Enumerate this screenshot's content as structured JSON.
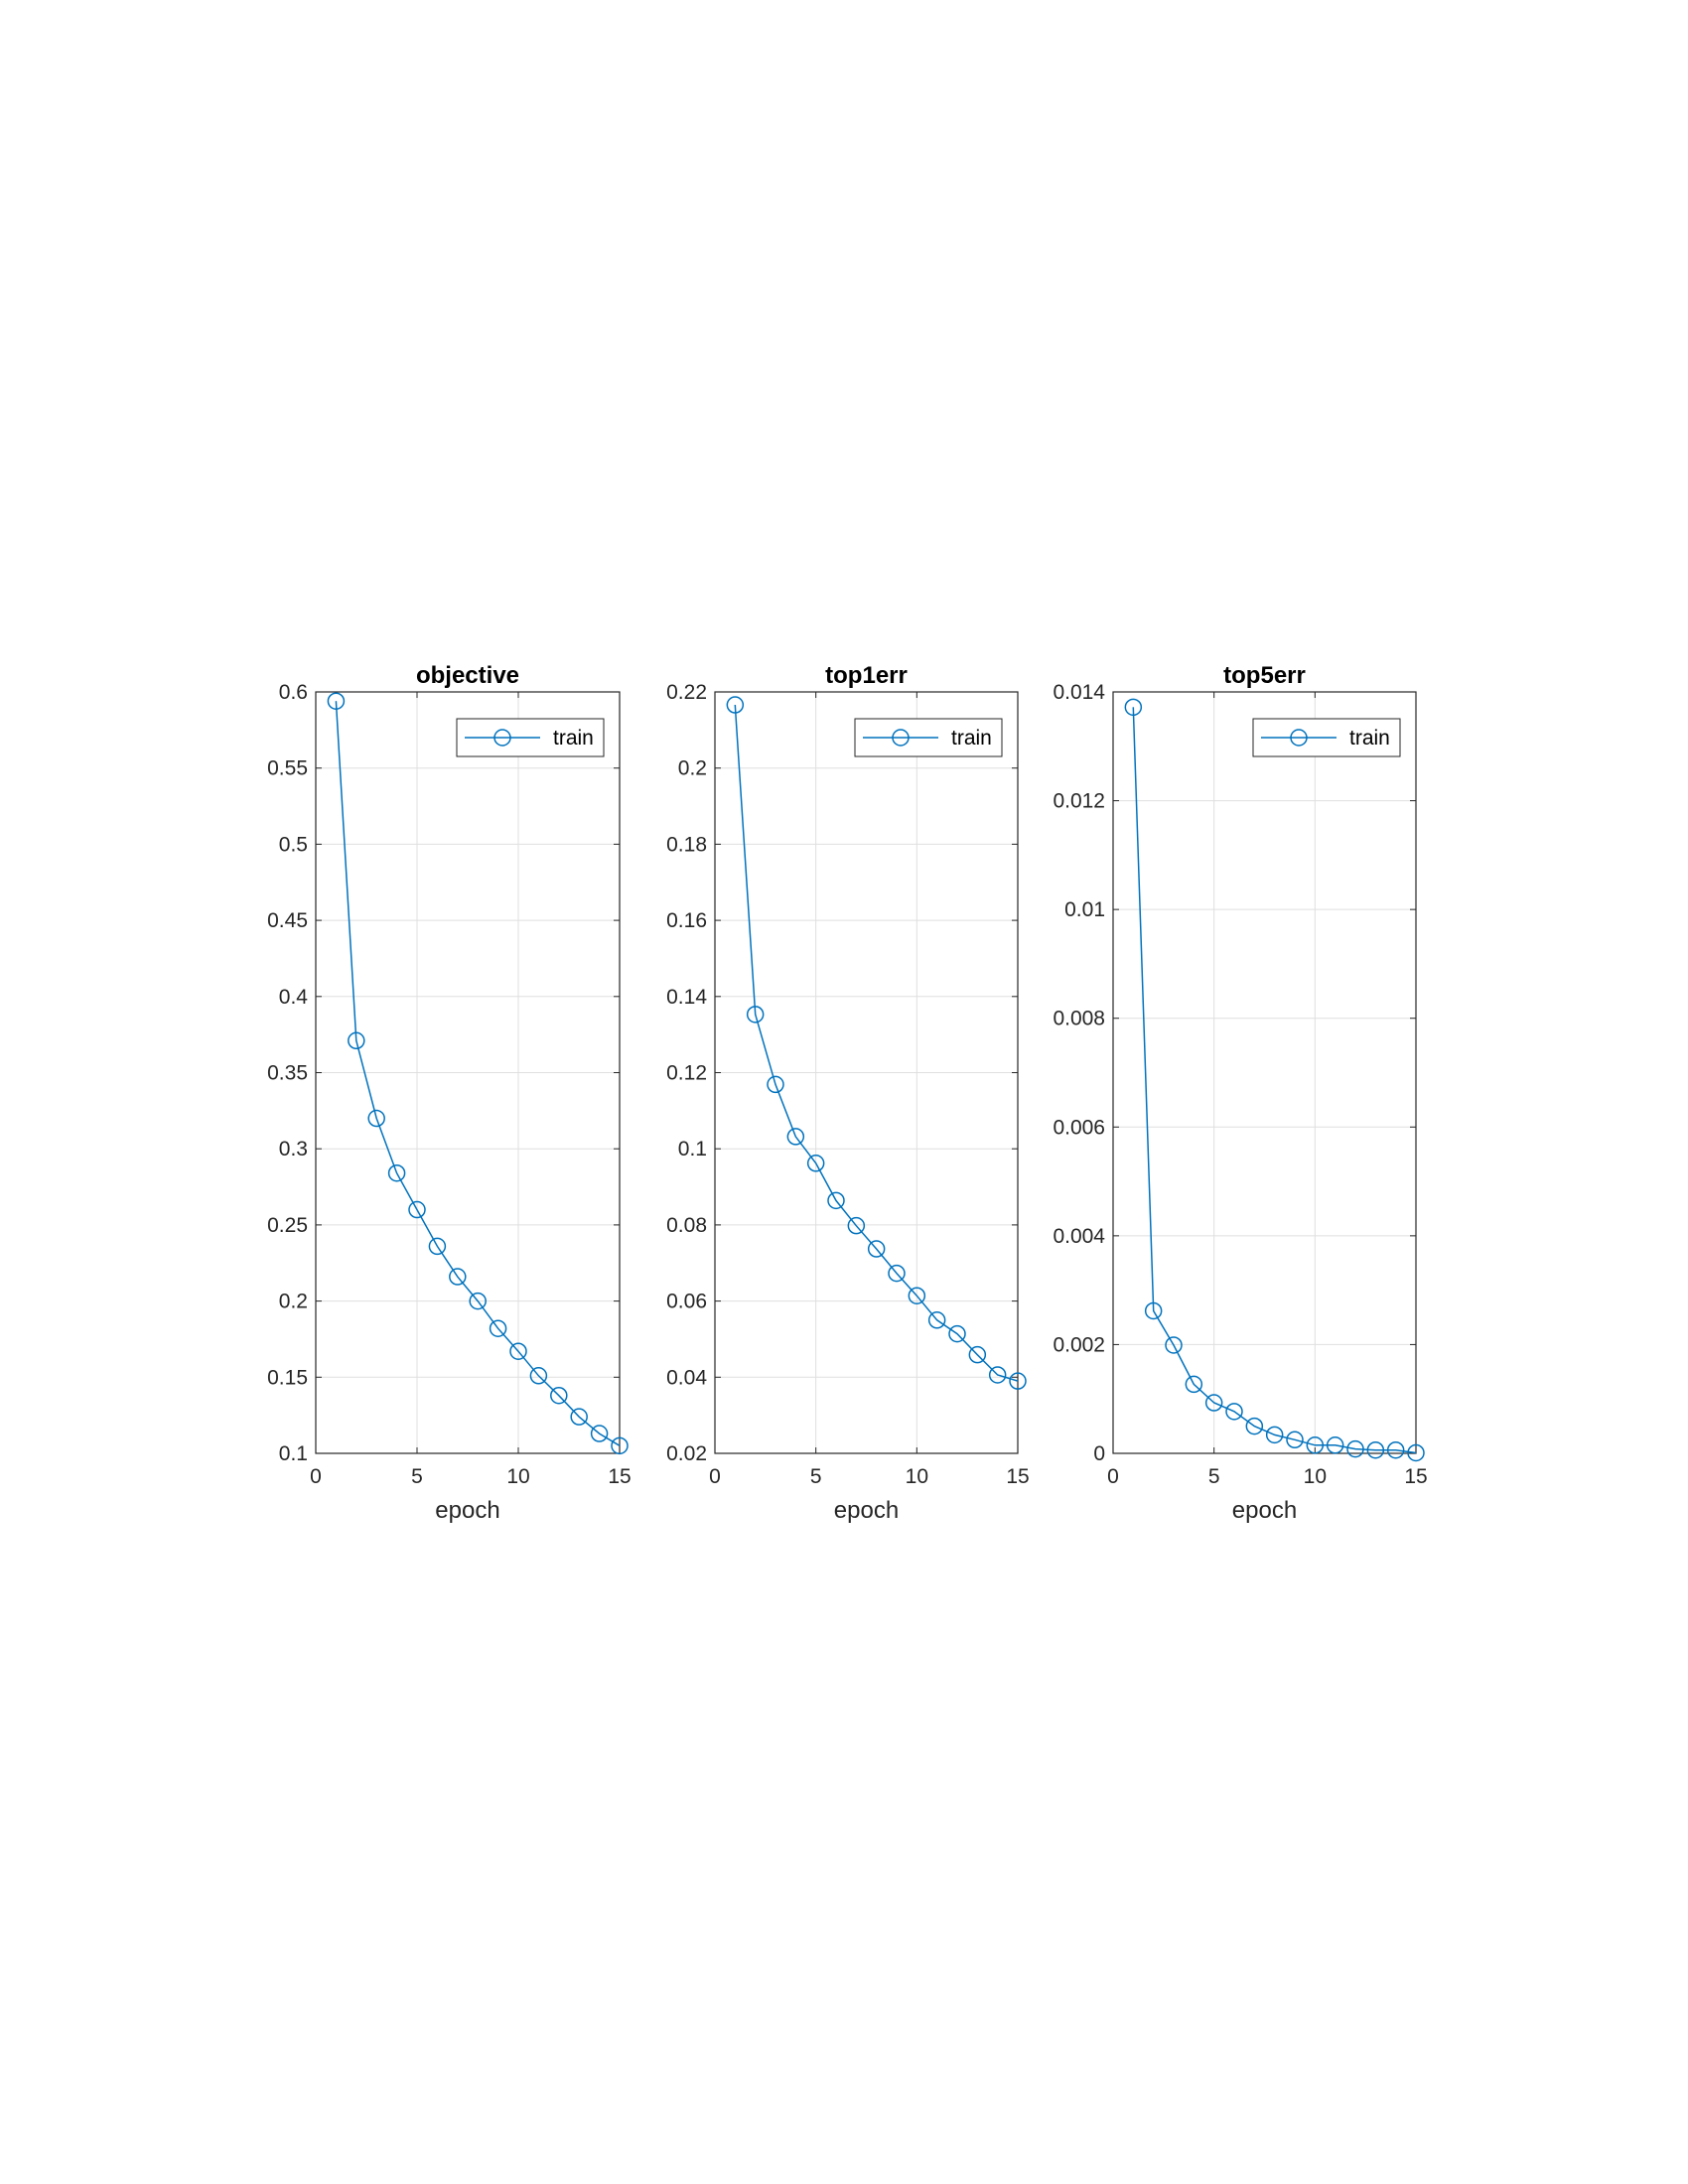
{
  "chart_data": [
    {
      "type": "line",
      "title": "objective",
      "xlabel": "epoch",
      "ylabel": "",
      "xlim": [
        0,
        15
      ],
      "ylim": [
        0.1,
        0.6
      ],
      "xticks": [
        "0",
        "5",
        "10",
        "15"
      ],
      "yticks": [
        "0.1",
        "0.15",
        "0.2",
        "0.25",
        "0.3",
        "0.35",
        "0.4",
        "0.45",
        "0.5",
        "0.55",
        "0.6"
      ],
      "grid": true,
      "legend_position": "top-right",
      "series": [
        {
          "name": "train",
          "color": "#0072BD",
          "marker": "circle",
          "x": [
            1,
            2,
            3,
            4,
            5,
            6,
            7,
            8,
            9,
            10,
            11,
            12,
            13,
            14,
            15
          ],
          "y": [
            0.594,
            0.371,
            0.32,
            0.284,
            0.26,
            0.236,
            0.216,
            0.2,
            0.182,
            0.167,
            0.151,
            0.138,
            0.124,
            0.113,
            0.105
          ]
        }
      ]
    },
    {
      "type": "line",
      "title": "top1err",
      "xlabel": "epoch",
      "ylabel": "",
      "xlim": [
        0,
        15
      ],
      "ylim": [
        0.02,
        0.22
      ],
      "xticks": [
        "0",
        "5",
        "10",
        "15"
      ],
      "yticks": [
        "0.02",
        "0.04",
        "0.06",
        "0.08",
        "0.1",
        "0.12",
        "0.14",
        "0.16",
        "0.18",
        "0.2",
        "0.22"
      ],
      "grid": true,
      "legend_position": "top-right",
      "series": [
        {
          "name": "train",
          "color": "#0072BD",
          "marker": "circle",
          "x": [
            1,
            2,
            3,
            4,
            5,
            6,
            7,
            8,
            9,
            10,
            11,
            12,
            13,
            14,
            15
          ],
          "y": [
            0.2166,
            0.1353,
            0.1169,
            0.1032,
            0.0962,
            0.0864,
            0.0798,
            0.0737,
            0.0673,
            0.0614,
            0.055,
            0.0514,
            0.0459,
            0.0406,
            0.039
          ]
        }
      ]
    },
    {
      "type": "line",
      "title": "top5err",
      "xlabel": "epoch",
      "ylabel": "",
      "xlim": [
        0,
        15
      ],
      "ylim": [
        0,
        0.014
      ],
      "xticks": [
        "0",
        "5",
        "10",
        "15"
      ],
      "yticks": [
        "0",
        "0.002",
        "0.004",
        "0.006",
        "0.008",
        "0.01",
        "0.012",
        "0.014"
      ],
      "grid": true,
      "legend_position": "top-right",
      "series": [
        {
          "name": "train",
          "color": "#0072BD",
          "marker": "circle",
          "x": [
            1,
            2,
            3,
            4,
            5,
            6,
            7,
            8,
            9,
            10,
            11,
            12,
            13,
            14,
            15
          ],
          "y": [
            0.01372,
            0.00262,
            0.00199,
            0.00127,
            0.00093,
            0.00077,
            0.0005,
            0.00034,
            0.00025,
            0.00015,
            0.00015,
            8e-05,
            6e-05,
            6e-05,
            1e-05
          ]
        }
      ]
    }
  ]
}
